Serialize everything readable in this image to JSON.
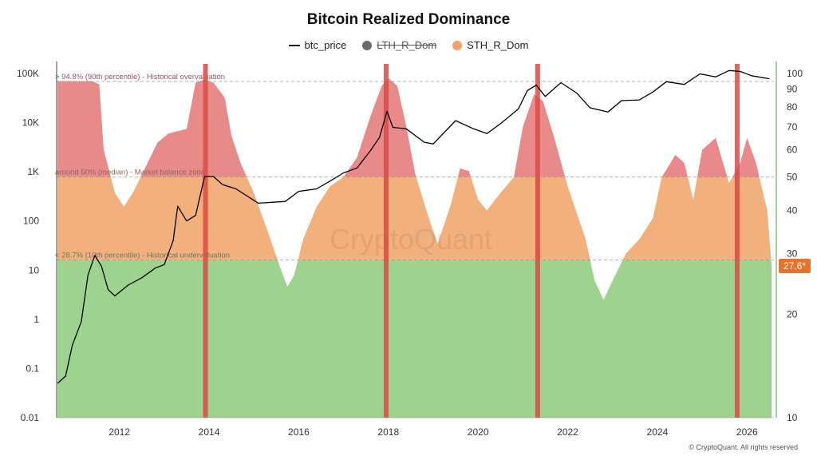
{
  "title": "Bitcoin Realized Dominance",
  "legend": [
    {
      "label": "btc_price",
      "color": "#000000",
      "marker": "line",
      "hidden": false
    },
    {
      "label": "LTH_R_Dom",
      "color": "#6b6b6b",
      "marker": "dot",
      "hidden": true
    },
    {
      "label": "STH_R_Dom",
      "color": "#f0a265",
      "marker": "dot",
      "hidden": false
    }
  ],
  "watermark": "CryptoQuant",
  "copyright": "© CryptoQuant. All rights reserved",
  "colors": {
    "overvalued_fill": "#e88a8a",
    "balance_fill": "#f2b07c",
    "undervalued_fill": "#9dd38f",
    "price_line": "#000000",
    "cycle_marker": "#d94a44",
    "current_badge": "#e8722c",
    "right_axis": "#7cc36d"
  },
  "chart_data": {
    "type": "area",
    "title": "Bitcoin Realized Dominance",
    "x_axis": {
      "ticks": [
        "2012",
        "2014",
        "2016",
        "2018",
        "2020",
        "2022",
        "2024",
        "2026"
      ],
      "range": [
        2010.6,
        2026.6
      ]
    },
    "y_left": {
      "label": "",
      "scale": "log",
      "range": [
        0.01,
        100000
      ],
      "ticks": [
        "100K",
        "10K",
        "1K",
        "100",
        "10",
        "1",
        "0.1",
        "0.01"
      ]
    },
    "y_right": {
      "label": "",
      "scale": "log",
      "range": [
        10,
        100
      ],
      "ticks": [
        "100",
        "90",
        "80",
        "70",
        "60",
        "50",
        "40",
        "30",
        "20",
        "10"
      ]
    },
    "thresholds": [
      {
        "value": 94.8,
        "label": "> 94.8% (90th percentile) - Historical overvaluation"
      },
      {
        "value": 50,
        "label": "around 50% (median) - Market balance zone"
      },
      {
        "value": 28.7,
        "label": "< 28.7% (10th percentile) - Historical undervaluation"
      }
    ],
    "current_value_label": "27.6*",
    "cycle_markers": [
      2013.92,
      2017.95,
      2021.33,
      2025.78
    ],
    "series": [
      {
        "name": "STH_R_Dom",
        "axis": "right",
        "points": [
          [
            2010.62,
            95
          ],
          [
            2011.0,
            95
          ],
          [
            2011.4,
            95
          ],
          [
            2011.55,
            93
          ],
          [
            2011.65,
            60
          ],
          [
            2011.9,
            45
          ],
          [
            2012.1,
            41
          ],
          [
            2012.3,
            45
          ],
          [
            2012.6,
            54
          ],
          [
            2012.85,
            63
          ],
          [
            2013.1,
            67
          ],
          [
            2013.5,
            69
          ],
          [
            2013.7,
            94
          ],
          [
            2013.9,
            96
          ],
          [
            2014.1,
            94
          ],
          [
            2014.35,
            85
          ],
          [
            2014.5,
            66
          ],
          [
            2014.7,
            55
          ],
          [
            2015.0,
            45
          ],
          [
            2015.3,
            35
          ],
          [
            2015.6,
            27
          ],
          [
            2015.75,
            24
          ],
          [
            2015.9,
            26
          ],
          [
            2016.1,
            33
          ],
          [
            2016.4,
            41
          ],
          [
            2016.7,
            47
          ],
          [
            2017.0,
            50
          ],
          [
            2017.3,
            57
          ],
          [
            2017.6,
            75
          ],
          [
            2017.85,
            92
          ],
          [
            2018.0,
            97
          ],
          [
            2018.2,
            92
          ],
          [
            2018.4,
            70
          ],
          [
            2018.6,
            51
          ],
          [
            2018.9,
            38
          ],
          [
            2019.1,
            32
          ],
          [
            2019.4,
            42
          ],
          [
            2019.6,
            53
          ],
          [
            2019.8,
            52
          ],
          [
            2020.0,
            43
          ],
          [
            2020.2,
            40
          ],
          [
            2020.5,
            45
          ],
          [
            2020.8,
            50
          ],
          [
            2021.0,
            70
          ],
          [
            2021.25,
            87
          ],
          [
            2021.45,
            83
          ],
          [
            2021.7,
            65
          ],
          [
            2022.0,
            47
          ],
          [
            2022.4,
            33
          ],
          [
            2022.6,
            25
          ],
          [
            2022.8,
            22
          ],
          [
            2023.0,
            25
          ],
          [
            2023.3,
            30
          ],
          [
            2023.6,
            33
          ],
          [
            2023.9,
            38
          ],
          [
            2024.1,
            50
          ],
          [
            2024.4,
            58
          ],
          [
            2024.6,
            55
          ],
          [
            2024.8,
            43
          ],
          [
            2025.0,
            60
          ],
          [
            2025.3,
            65
          ],
          [
            2025.6,
            48
          ],
          [
            2025.85,
            55
          ],
          [
            2026.0,
            65
          ],
          [
            2026.2,
            55
          ],
          [
            2026.45,
            40
          ],
          [
            2026.55,
            27.6
          ]
        ]
      },
      {
        "name": "btc_price",
        "axis": "left",
        "points": [
          [
            2010.62,
            0.05
          ],
          [
            2010.8,
            0.07
          ],
          [
            2010.95,
            0.3
          ],
          [
            2011.15,
            0.9
          ],
          [
            2011.3,
            8
          ],
          [
            2011.45,
            20
          ],
          [
            2011.6,
            12
          ],
          [
            2011.75,
            4
          ],
          [
            2011.9,
            3
          ],
          [
            2012.2,
            5
          ],
          [
            2012.5,
            7
          ],
          [
            2012.8,
            11
          ],
          [
            2013.0,
            13
          ],
          [
            2013.2,
            40
          ],
          [
            2013.3,
            200
          ],
          [
            2013.5,
            100
          ],
          [
            2013.7,
            130
          ],
          [
            2013.9,
            800
          ],
          [
            2014.1,
            800
          ],
          [
            2014.3,
            550
          ],
          [
            2014.6,
            450
          ],
          [
            2014.9,
            300
          ],
          [
            2015.1,
            230
          ],
          [
            2015.4,
            240
          ],
          [
            2015.7,
            250
          ],
          [
            2016.0,
            400
          ],
          [
            2016.4,
            450
          ],
          [
            2016.7,
            650
          ],
          [
            2017.0,
            950
          ],
          [
            2017.3,
            1200
          ],
          [
            2017.6,
            2700
          ],
          [
            2017.8,
            5000
          ],
          [
            2017.97,
            17000
          ],
          [
            2018.1,
            8000
          ],
          [
            2018.4,
            7500
          ],
          [
            2018.8,
            4000
          ],
          [
            2019.0,
            3700
          ],
          [
            2019.5,
            11000
          ],
          [
            2019.9,
            7500
          ],
          [
            2020.2,
            6000
          ],
          [
            2020.5,
            9500
          ],
          [
            2020.9,
            19000
          ],
          [
            2021.1,
            45000
          ],
          [
            2021.3,
            58000
          ],
          [
            2021.5,
            34000
          ],
          [
            2021.85,
            65000
          ],
          [
            2022.2,
            40000
          ],
          [
            2022.5,
            20000
          ],
          [
            2022.9,
            16500
          ],
          [
            2023.2,
            28000
          ],
          [
            2023.6,
            29000
          ],
          [
            2023.9,
            42000
          ],
          [
            2024.2,
            68000
          ],
          [
            2024.6,
            60000
          ],
          [
            2024.95,
            98000
          ],
          [
            2025.3,
            85000
          ],
          [
            2025.6,
            115000
          ],
          [
            2025.85,
            110000
          ],
          [
            2026.1,
            90000
          ],
          [
            2026.5,
            78000
          ]
        ]
      }
    ]
  }
}
